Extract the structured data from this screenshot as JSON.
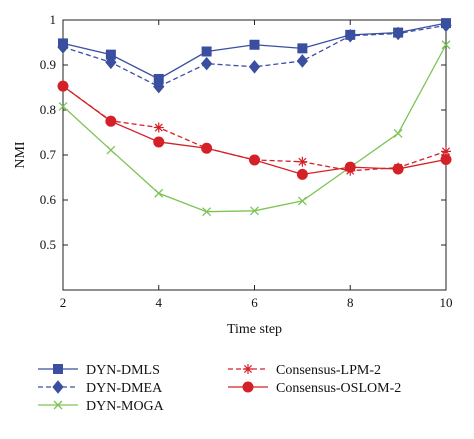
{
  "chart_data": {
    "type": "line",
    "xlabel": "Time step",
    "ylabel": "NMI",
    "xlim": [
      2,
      10
    ],
    "ylim": [
      0.4,
      1.0
    ],
    "x_ticks": [
      2,
      4,
      6,
      8,
      10
    ],
    "y_ticks": [
      0.5,
      0.6,
      0.7,
      0.8,
      0.9,
      1.0
    ],
    "x_tick_labels": [
      "2",
      "4",
      "6",
      "8",
      "10"
    ],
    "y_tick_labels": [
      "0.5",
      "0.6",
      "0.7",
      "0.8",
      "0.9",
      "1"
    ],
    "grid": false,
    "legend_position": "bottom",
    "x": [
      2,
      3,
      4,
      5,
      6,
      7,
      8,
      9,
      10
    ],
    "series": [
      {
        "name": "DYN-DMLS",
        "values": [
          0.948,
          0.923,
          0.869,
          0.93,
          0.945,
          0.937,
          0.967,
          0.972,
          0.993
        ],
        "color": "#3a4fa0",
        "marker": "square",
        "dash": "solid"
      },
      {
        "name": "DYN-DMEA",
        "values": [
          0.94,
          0.906,
          0.852,
          0.903,
          0.896,
          0.909,
          0.965,
          0.97,
          0.988
        ],
        "color": "#3a4fa0",
        "marker": "diamond",
        "dash": "dashed"
      },
      {
        "name": "DYN-MOGA",
        "values": [
          0.808,
          0.711,
          0.615,
          0.574,
          0.576,
          0.598,
          0.673,
          0.748,
          0.945
        ],
        "color": "#7cc455",
        "marker": "x",
        "dash": "solid"
      },
      {
        "name": "Consensus-LPM-2",
        "values": [
          0.853,
          0.776,
          0.761,
          0.715,
          0.689,
          0.685,
          0.665,
          0.672,
          0.708
        ],
        "color": "#d42027",
        "marker": "star",
        "dash": "dashed"
      },
      {
        "name": "Consensus-OSLOM-2",
        "values": [
          0.853,
          0.775,
          0.729,
          0.715,
          0.689,
          0.657,
          0.673,
          0.669,
          0.69
        ],
        "color": "#d42027",
        "marker": "circle",
        "dash": "solid"
      }
    ]
  }
}
